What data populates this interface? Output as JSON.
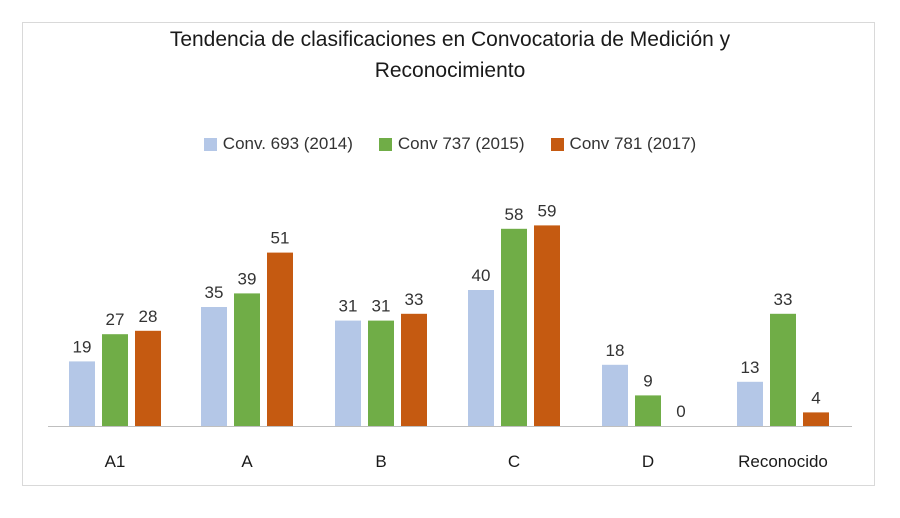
{
  "chart_data": {
    "type": "bar",
    "title_lines": [
      "Tendencia de clasificaciones en Convocatoria de Medición y",
      "Reconocimiento"
    ],
    "categories": [
      "A1",
      "A",
      "B",
      "C",
      "D",
      "Reconocido"
    ],
    "series": [
      {
        "name": "Conv. 693 (2014)",
        "color": "#b4c7e7",
        "values": [
          19,
          35,
          31,
          40,
          18,
          13
        ]
      },
      {
        "name": "Conv 737 (2015)",
        "color": "#70ad47",
        "values": [
          27,
          39,
          31,
          58,
          9,
          33
        ]
      },
      {
        "name": "Conv 781 (2017)",
        "color": "#c55a11",
        "values": [
          28,
          51,
          33,
          59,
          0,
          4
        ]
      }
    ],
    "ylim": [
      0,
      70
    ],
    "grid": false,
    "legend_position": "top",
    "data_labels": true
  }
}
